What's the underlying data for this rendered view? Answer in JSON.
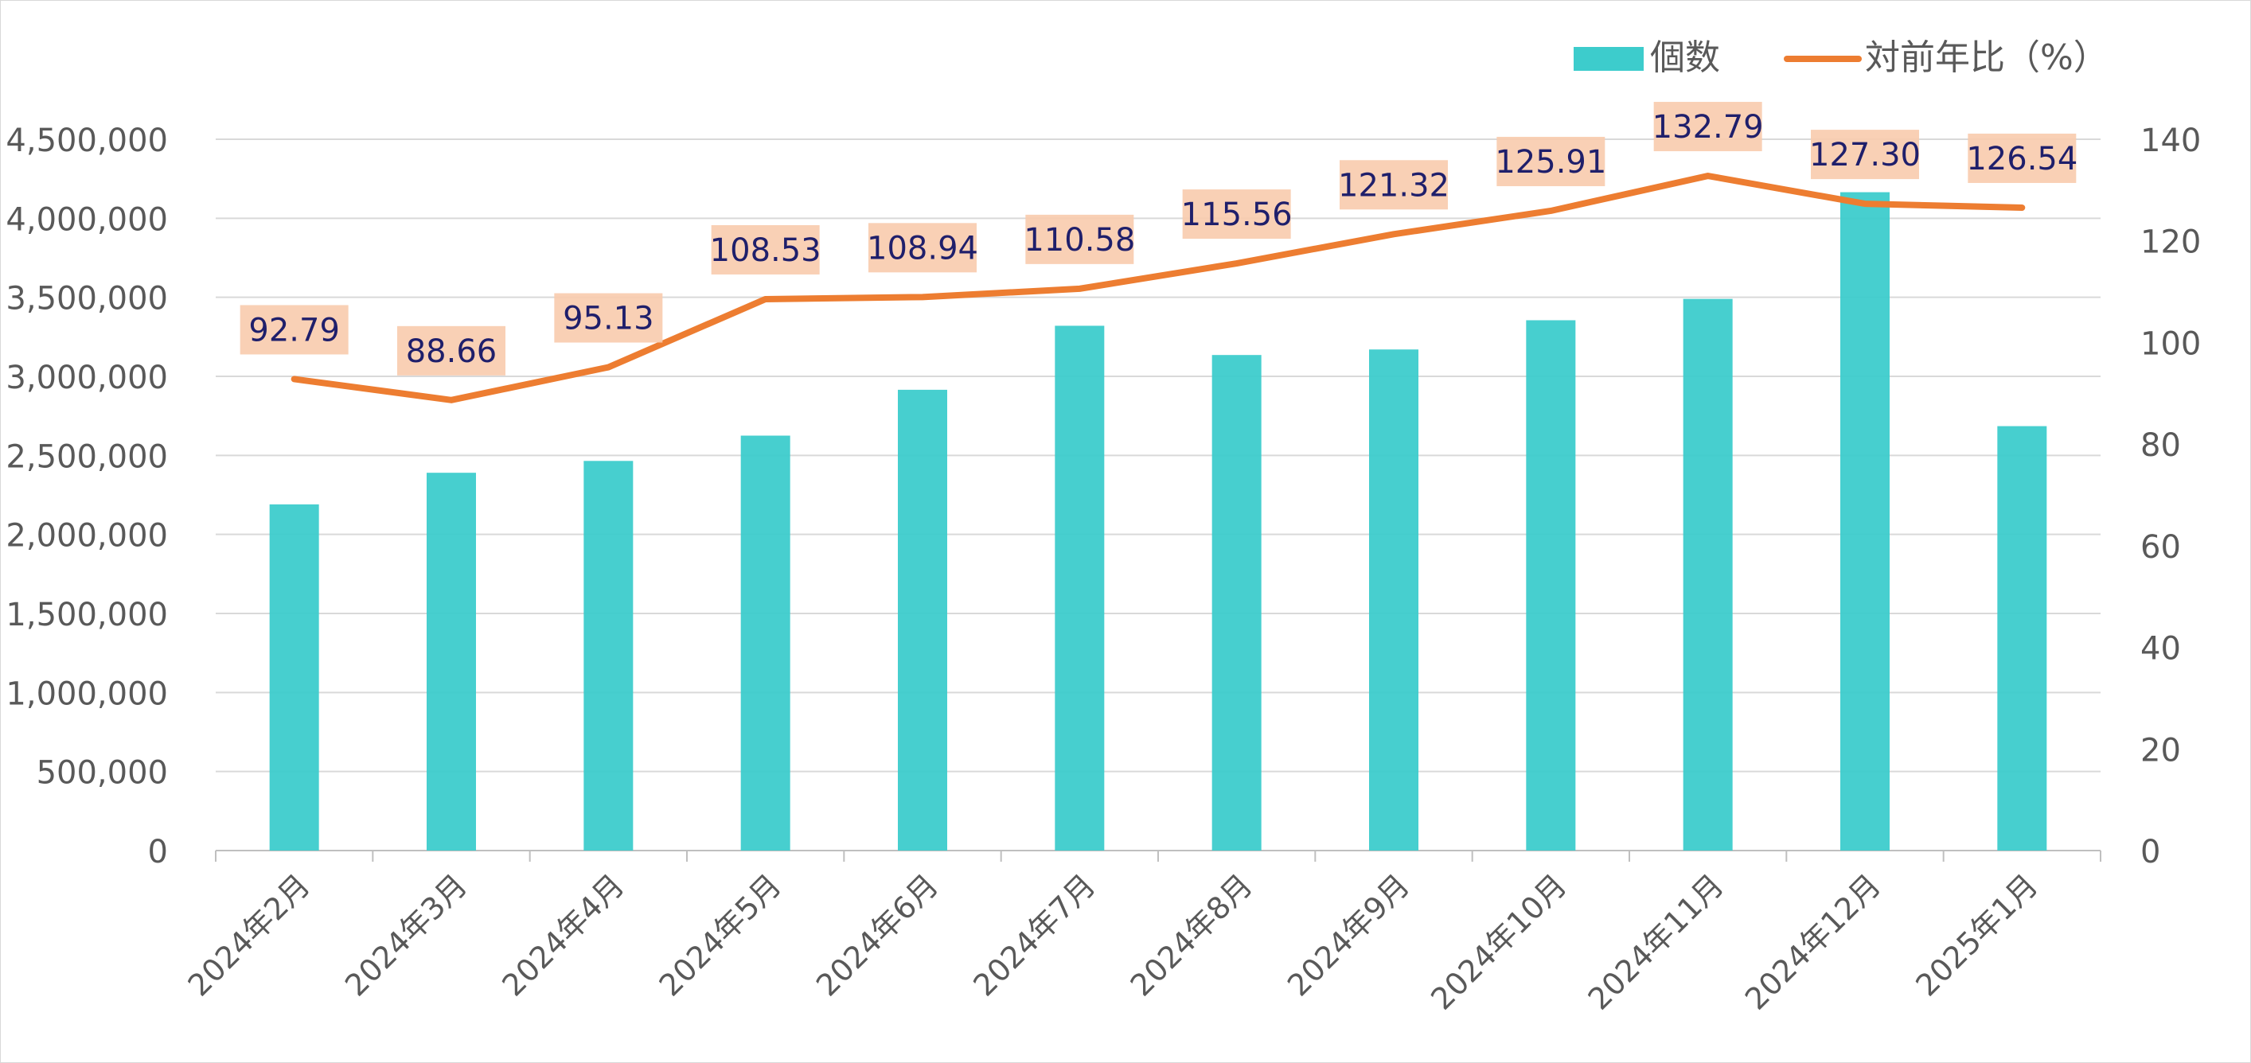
{
  "chart_data": {
    "type": "bar",
    "categories": [
      "2024年2月",
      "2024年3月",
      "2024年4月",
      "2024年5月",
      "2024年6月",
      "2024年7月",
      "2024年8月",
      "2024年9月",
      "2024年10月",
      "2024年11月",
      "2024年12月",
      "2025年1月"
    ],
    "series": [
      {
        "name": "個数",
        "type": "bar",
        "axis": "left",
        "color": "#3dcccc",
        "values": [
          2190000,
          2390000,
          2465000,
          2625000,
          2915000,
          3320000,
          3135000,
          3170000,
          3355000,
          3490000,
          4165000,
          2685000
        ]
      },
      {
        "name": "対前年比（%）",
        "type": "line",
        "axis": "right",
        "color": "#ed7d31",
        "values": [
          92.79,
          88.66,
          95.13,
          108.53,
          108.94,
          110.58,
          115.56,
          121.32,
          125.91,
          132.79,
          127.3,
          126.54
        ],
        "labels": [
          "92.79",
          "88.66",
          "95.13",
          "108.53",
          "108.94",
          "110.58",
          "115.56",
          "121.32",
          "125.91",
          "132.79",
          "127.30",
          "126.54"
        ],
        "label_bg": "#f8cbad",
        "label_color": "#1f1f6b"
      }
    ],
    "y_left": {
      "ylim": [
        0,
        4500000
      ],
      "ticks": [
        0,
        500000,
        1000000,
        1500000,
        2000000,
        2500000,
        3000000,
        3500000,
        4000000,
        4500000
      ],
      "tick_labels": [
        "0",
        "500,000",
        "1,000,000",
        "1,500,000",
        "2,000,000",
        "2,500,000",
        "3,000,000",
        "3,500,000",
        "4,000,000",
        "4,500,000"
      ]
    },
    "y_right": {
      "ylim": [
        0,
        140
      ],
      "ticks": [
        0,
        20,
        40,
        60,
        80,
        100,
        120,
        140
      ],
      "tick_labels": [
        "0",
        "20",
        "40",
        "60",
        "80",
        "100",
        "120",
        "140"
      ]
    },
    "grid": true,
    "legend": {
      "position": "top-right",
      "items": [
        {
          "label": "個数",
          "kind": "bar",
          "color": "#3dcccc"
        },
        {
          "label": "対前年比（%）",
          "kind": "line",
          "color": "#ed7d31"
        }
      ]
    },
    "colors": {
      "axis_text": "#595959",
      "gridline": "#d9d9d9",
      "axis_line": "#bfbfbf"
    }
  }
}
